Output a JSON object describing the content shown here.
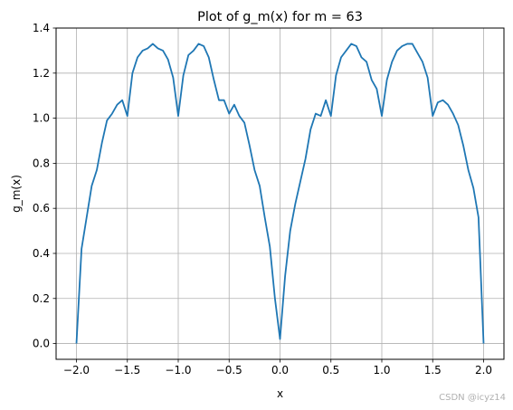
{
  "chart_data": {
    "type": "line",
    "title": "Plot of g_m(x) for m = 63",
    "xlabel": "x",
    "ylabel": "g_m(x)",
    "xlim": [
      -2.2,
      2.2
    ],
    "ylim": [
      -0.07,
      1.4
    ],
    "xticks": [
      -2.0,
      -1.5,
      -1.0,
      -0.5,
      0.0,
      0.5,
      1.0,
      1.5,
      2.0
    ],
    "xtick_labels": [
      "−2.0",
      "−1.5",
      "−1.0",
      "−0.5",
      "0.0",
      "0.5",
      "1.0",
      "1.5",
      "2.0"
    ],
    "yticks": [
      0.0,
      0.2,
      0.4,
      0.6,
      0.8,
      1.0,
      1.2,
      1.4
    ],
    "ytick_labels": [
      "0.0",
      "0.2",
      "0.4",
      "0.6",
      "0.8",
      "1.0",
      "1.2",
      "1.4"
    ],
    "grid": true,
    "line_color": "#1f77b4",
    "series": [
      {
        "x": [
          -2.0,
          -1.95,
          -1.9,
          -1.85,
          -1.8,
          -1.75,
          -1.7,
          -1.65,
          -1.6,
          -1.55,
          -1.5,
          -1.45,
          -1.4,
          -1.35,
          -1.3,
          -1.25,
          -1.2,
          -1.15,
          -1.1,
          -1.05,
          -1.0,
          -0.95,
          -0.9,
          -0.85,
          -0.8,
          -0.75,
          -0.7,
          -0.65,
          -0.6,
          -0.55,
          -0.5,
          -0.45,
          -0.4,
          -0.35,
          -0.3,
          -0.25,
          -0.2,
          -0.15,
          -0.1,
          -0.05,
          0.0,
          0.05,
          0.1,
          0.15,
          0.2,
          0.25,
          0.3,
          0.35,
          0.4,
          0.45,
          0.5,
          0.55,
          0.6,
          0.65,
          0.7,
          0.75,
          0.8,
          0.85,
          0.9,
          0.95,
          1.0,
          1.05,
          1.1,
          1.15,
          1.2,
          1.25,
          1.3,
          1.35,
          1.4,
          1.45,
          1.5,
          1.55,
          1.6,
          1.65,
          1.7,
          1.75,
          1.8,
          1.85,
          1.9,
          1.95,
          2.0
        ],
        "y": [
          0.0,
          0.42,
          0.56,
          0.7,
          0.77,
          0.89,
          0.99,
          1.02,
          1.06,
          1.08,
          1.01,
          1.2,
          1.27,
          1.3,
          1.31,
          1.33,
          1.31,
          1.3,
          1.26,
          1.18,
          1.01,
          1.19,
          1.28,
          1.3,
          1.33,
          1.32,
          1.27,
          1.17,
          1.08,
          1.08,
          1.02,
          1.06,
          1.01,
          0.98,
          0.88,
          0.77,
          0.7,
          0.56,
          0.43,
          0.2,
          0.02,
          0.3,
          0.5,
          0.62,
          0.72,
          0.82,
          0.95,
          1.02,
          1.01,
          1.08,
          1.01,
          1.19,
          1.27,
          1.3,
          1.33,
          1.32,
          1.27,
          1.25,
          1.17,
          1.13,
          1.01,
          1.17,
          1.25,
          1.3,
          1.32,
          1.33,
          1.33,
          1.29,
          1.25,
          1.18,
          1.01,
          1.07,
          1.08,
          1.06,
          1.02,
          0.97,
          0.88,
          0.77,
          0.69,
          0.56,
          0.0
        ]
      }
    ]
  },
  "watermark": "CSDN @icyz14"
}
